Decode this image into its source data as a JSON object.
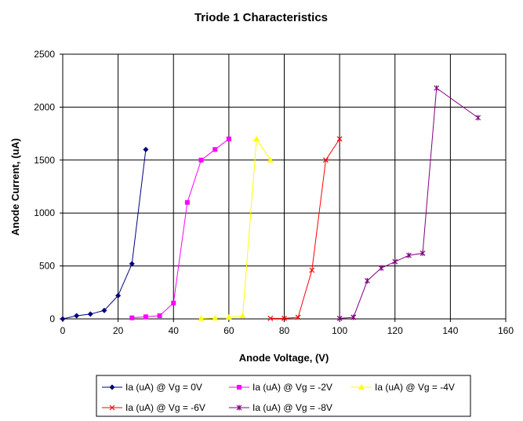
{
  "chart_data": {
    "type": "line",
    "title": "Triode 1 Characteristics",
    "xlabel": "Anode Voltage, (V)",
    "ylabel": "Anode Current, (uA)",
    "xlim": [
      0,
      160
    ],
    "ylim": [
      0,
      2500
    ],
    "x_ticks": [
      0,
      20,
      40,
      60,
      80,
      100,
      120,
      140,
      160
    ],
    "y_ticks": [
      0,
      500,
      1000,
      1500,
      2000,
      2500
    ],
    "grid": true,
    "legend_position": "bottom",
    "series": [
      {
        "name": "Ia (uA) @ Vg = 0V",
        "color": "#000080",
        "marker": "diamond",
        "x": [
          0,
          5,
          10,
          15,
          20,
          25,
          30
        ],
        "y": [
          0,
          30,
          45,
          80,
          220,
          520,
          1600
        ]
      },
      {
        "name": "Ia (uA) @ Vg = -2V",
        "color": "#FF00FF",
        "marker": "square",
        "x": [
          25,
          30,
          35,
          40,
          45,
          50,
          55,
          60
        ],
        "y": [
          10,
          20,
          30,
          150,
          1100,
          1500,
          1600,
          1700
        ]
      },
      {
        "name": "Ia (uA) @ Vg = -4V",
        "color": "#FFFF00",
        "marker": "triangle",
        "x": [
          50,
          55,
          60,
          65,
          70,
          75
        ],
        "y": [
          5,
          8,
          15,
          30,
          1700,
          1500
        ]
      },
      {
        "name": "Ia (uA) @ Vg = -6V",
        "color": "#FF0000",
        "marker": "x",
        "x": [
          75,
          80,
          85,
          90,
          95,
          100
        ],
        "y": [
          5,
          5,
          15,
          460,
          1500,
          1700
        ]
      },
      {
        "name": "Ia (uA) @ Vg = -8V",
        "color": "#800080",
        "marker": "asterisk",
        "x": [
          100,
          105,
          110,
          115,
          120,
          125,
          130,
          135,
          150
        ],
        "y": [
          5,
          15,
          360,
          480,
          540,
          600,
          620,
          2180,
          1900
        ]
      }
    ]
  }
}
